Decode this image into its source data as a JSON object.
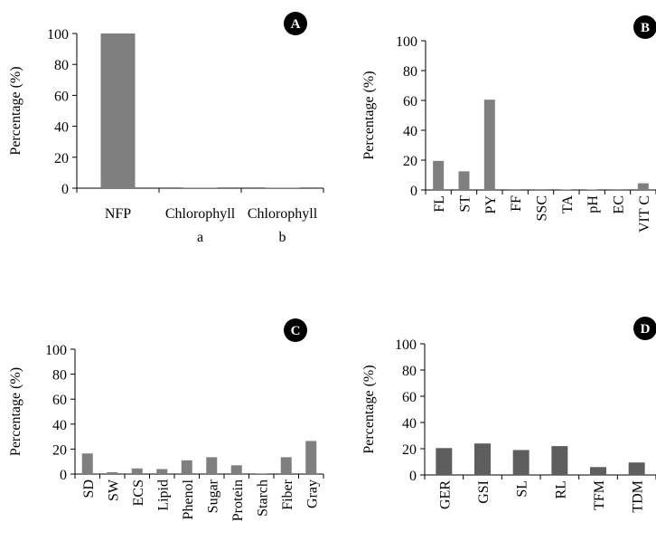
{
  "colors": {
    "bar_light": "#7f7f7f",
    "bar_dark": "#5e5e5e",
    "badge": "#000000",
    "axis": "#000000"
  },
  "chart_data": [
    {
      "id": "A",
      "type": "bar",
      "badge": "A",
      "ylabel": "Percentage (%)",
      "ylim": [
        0,
        100
      ],
      "yticks": [
        0,
        20,
        40,
        60,
        80,
        100
      ],
      "categories": [
        [
          "NFP"
        ],
        [
          "Chlorophyll",
          "a"
        ],
        [
          "Chlorophyll",
          "b"
        ]
      ],
      "values": [
        100,
        0,
        0
      ],
      "rotated_labels": false,
      "grid": false
    },
    {
      "id": "B",
      "type": "bar",
      "badge": "B",
      "ylabel": "Percentage (%)",
      "ylim": [
        0,
        100
      ],
      "yticks": [
        0,
        20,
        40,
        60,
        80,
        100
      ],
      "categories": [
        "FL",
        "ST",
        "PY",
        "FF",
        "SSC",
        "TA",
        "pH",
        "EC",
        "VIT C"
      ],
      "values": [
        19.5,
        12.5,
        60.5,
        0.5,
        0.5,
        0.3,
        0.2,
        0.5,
        4.5
      ],
      "rotated_labels": true,
      "grid": false
    },
    {
      "id": "C",
      "type": "bar",
      "badge": "C",
      "ylabel": "Percentage (%)",
      "ylim": [
        0,
        100
      ],
      "yticks": [
        0,
        20,
        40,
        60,
        80,
        100
      ],
      "categories": [
        "SD",
        "SW",
        "ECS",
        "Lipid",
        "Phenol",
        "Sugar",
        "Protein",
        "Starch",
        "Fiber",
        "Gray"
      ],
      "values": [
        16.5,
        1.5,
        4.5,
        4,
        11,
        13.5,
        7,
        0.5,
        13.5,
        26.5
      ],
      "rotated_labels": true,
      "grid": false
    },
    {
      "id": "D",
      "type": "bar",
      "badge": "D",
      "ylabel": "Percentage (%)",
      "ylim": [
        0,
        100
      ],
      "yticks": [
        0,
        20,
        40,
        60,
        80,
        100
      ],
      "categories": [
        "GER",
        "GSI",
        "SL",
        "RL",
        "TFM",
        "TDM"
      ],
      "values": [
        20.5,
        24,
        19,
        22,
        6,
        9.5
      ],
      "rotated_labels": true,
      "grid": false
    }
  ]
}
